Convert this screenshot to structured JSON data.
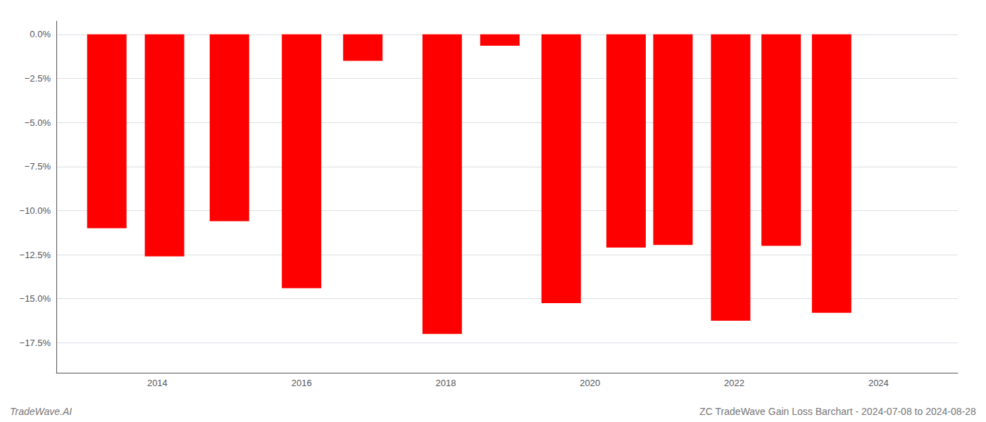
{
  "chart_data": {
    "type": "bar",
    "x": [
      2013.3,
      2014.1,
      2015.0,
      2016.0,
      2016.85,
      2017.95,
      2018.75,
      2019.6,
      2020.5,
      2021.15,
      2021.95,
      2022.65,
      2023.35,
      2024.05
    ],
    "values": [
      -11.0,
      -12.6,
      -10.6,
      -14.4,
      -1.5,
      -17.0,
      -0.65,
      -15.25,
      -12.1,
      -11.95,
      -16.25,
      -12.0,
      -15.8,
      -0.0
    ],
    "color": "#ff0000",
    "xlim": [
      2012.6,
      2025.1
    ],
    "xticks": [
      2014,
      2016,
      2018,
      2020,
      2022,
      2024
    ],
    "ylim": [
      -19.2,
      0.75
    ],
    "yticks": [
      {
        "value": 0.0,
        "label": "0.0%"
      },
      {
        "value": -2.5,
        "label": "−2.5%"
      },
      {
        "value": -5.0,
        "label": "−5.0%"
      },
      {
        "value": -7.5,
        "label": "−7.5%"
      },
      {
        "value": -10.0,
        "label": "−10.0%"
      },
      {
        "value": -12.5,
        "label": "−12.5%"
      },
      {
        "value": -15.0,
        "label": "−15.0%"
      },
      {
        "value": -17.5,
        "label": "−17.5%"
      }
    ],
    "grid": true,
    "annotations": [
      "TradeWave.AI",
      "ZC TradeWave Gain Loss Barchart - 2024-07-08 to 2024-08-28"
    ]
  }
}
